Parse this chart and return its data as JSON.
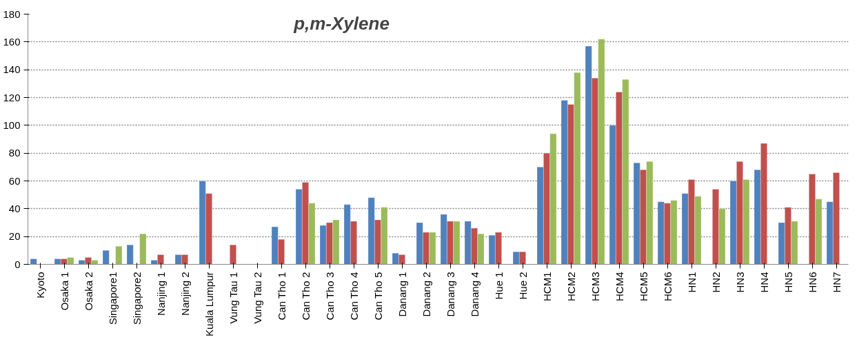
{
  "chart_data": {
    "type": "bar",
    "title": "p,m-Xylene",
    "categories": [
      "Kyoto",
      "Osaka 1",
      "Osaka 2",
      "Singapore1",
      "Singapore2",
      "Nanjing 1",
      "Nanjing 2",
      "Kuala Lumpur",
      "Vung Tau 1",
      "Vung Tau 2",
      "Can Tho 1",
      "Can Tho 2",
      "Can Tho 3",
      "Can Tho 4",
      "Can Tho 5",
      "Danang 1",
      "Danang 2",
      "Danang 3",
      "Danang 4",
      "Hue 1",
      "Hue 2",
      "HCM1",
      "HCM2",
      "HCM3",
      "HCM4",
      "HCM5",
      "HCM6",
      "HN1",
      "HN2",
      "HN3",
      "HN4",
      "HN5",
      "HN6",
      "HN7"
    ],
    "series": [
      {
        "color": "#4f81bd",
        "values": [
          4,
          4,
          3,
          10,
          14,
          3,
          7,
          60,
          null,
          null,
          27,
          54,
          28,
          43,
          48,
          8,
          30,
          36,
          31,
          21,
          9,
          70,
          118,
          157,
          100,
          73,
          45,
          51,
          null,
          60,
          68,
          30,
          null,
          45
        ]
      },
      {
        "color": "#c0504d",
        "values": [
          null,
          4,
          5,
          null,
          null,
          7,
          7,
          51,
          14,
          null,
          18,
          59,
          30,
          31,
          32,
          7,
          23,
          31,
          26,
          23,
          9,
          80,
          115,
          134,
          124,
          68,
          44,
          61,
          54,
          74,
          87,
          41,
          65,
          66
        ]
      },
      {
        "color": "#9bbb59",
        "values": [
          null,
          5,
          3,
          13,
          22,
          null,
          null,
          null,
          null,
          null,
          null,
          44,
          32,
          null,
          41,
          null,
          23,
          31,
          22,
          null,
          null,
          94,
          138,
          162,
          133,
          74,
          46,
          49,
          40,
          61,
          null,
          31,
          47,
          null
        ]
      }
    ],
    "ylim": [
      0,
      180
    ],
    "yticks": [
      0,
      20,
      40,
      60,
      80,
      100,
      120,
      140,
      160,
      180
    ],
    "grid": "y"
  }
}
